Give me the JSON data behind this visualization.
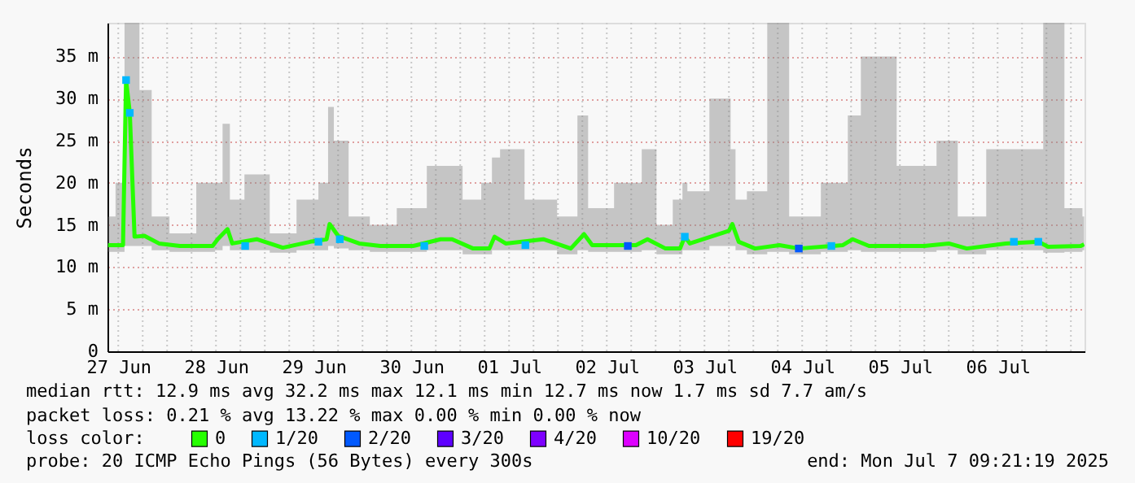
{
  "chart_data": {
    "type": "line",
    "ylabel": "Seconds",
    "legend_title": "loss color:",
    "legend": "bottom left",
    "grid": true,
    "xlim": [
      "2025-06-27T09:21",
      "2025-07-07T09:21"
    ],
    "xticks": [
      {
        "value": "2025-06-27T12:00",
        "label": "27 Jun"
      },
      {
        "value": "2025-06-27T18:00",
        "label": null
      },
      {
        "value": "2025-06-28T00:00",
        "label": null
      },
      {
        "value": "2025-06-28T06:00",
        "label": null
      },
      {
        "value": "2025-06-28T12:00",
        "label": "28 Jun"
      },
      {
        "value": "2025-06-28T18:00",
        "label": null
      },
      {
        "value": "2025-06-29T00:00",
        "label": null
      },
      {
        "value": "2025-06-29T06:00",
        "label": null
      },
      {
        "value": "2025-06-29T12:00",
        "label": "29 Jun"
      },
      {
        "value": "2025-06-29T18:00",
        "label": null
      },
      {
        "value": "2025-06-30T00:00",
        "label": null
      },
      {
        "value": "2025-06-30T06:00",
        "label": null
      },
      {
        "value": "2025-06-30T12:00",
        "label": "30 Jun"
      },
      {
        "value": "2025-06-30T18:00",
        "label": null
      },
      {
        "value": "2025-07-01T00:00",
        "label": null
      },
      {
        "value": "2025-07-01T06:00",
        "label": null
      },
      {
        "value": "2025-07-01T12:00",
        "label": "01 Jul"
      },
      {
        "value": "2025-07-01T18:00",
        "label": null
      },
      {
        "value": "2025-07-02T00:00",
        "label": null
      },
      {
        "value": "2025-07-02T06:00",
        "label": null
      },
      {
        "value": "2025-07-02T12:00",
        "label": "02 Jul"
      },
      {
        "value": "2025-07-02T18:00",
        "label": null
      },
      {
        "value": "2025-07-03T00:00",
        "label": null
      },
      {
        "value": "2025-07-03T06:00",
        "label": null
      },
      {
        "value": "2025-07-03T12:00",
        "label": "03 Jul"
      },
      {
        "value": "2025-07-03T18:00",
        "label": null
      },
      {
        "value": "2025-07-04T00:00",
        "label": null
      },
      {
        "value": "2025-07-04T06:00",
        "label": null
      },
      {
        "value": "2025-07-04T12:00",
        "label": "04 Jul"
      },
      {
        "value": "2025-07-04T18:00",
        "label": null
      },
      {
        "value": "2025-07-05T00:00",
        "label": null
      },
      {
        "value": "2025-07-05T06:00",
        "label": null
      },
      {
        "value": "2025-07-05T12:00",
        "label": "05 Jul"
      },
      {
        "value": "2025-07-05T18:00",
        "label": null
      },
      {
        "value": "2025-07-06T00:00",
        "label": null
      },
      {
        "value": "2025-07-06T06:00",
        "label": null
      },
      {
        "value": "2025-07-06T12:00",
        "label": "06 Jul"
      },
      {
        "value": "2025-07-06T18:00",
        "label": null
      },
      {
        "value": "2025-07-07T00:00",
        "label": null
      },
      {
        "value": "2025-07-07T06:00",
        "label": null
      }
    ],
    "ylim": [
      0,
      39
    ],
    "yticks": [
      0,
      {
        "value": 5,
        "label": "5 m"
      },
      {
        "value": 10,
        "label": "10 m"
      },
      {
        "value": 15,
        "label": "15 m"
      },
      {
        "value": 20,
        "label": "20 m"
      },
      {
        "value": 25,
        "label": "25 m"
      },
      {
        "value": 30,
        "label": "30 m"
      },
      {
        "value": 35,
        "label": "35 m"
      }
    ],
    "series": [
      {
        "name": "0",
        "color": "#26ff00",
        "x": [
          "2025-06-27T09:30",
          "2025-06-27T13:10",
          "2025-06-27T13:55",
          "2025-06-27T14:50",
          "2025-06-27T16:00",
          "2025-06-27T18:25",
          "2025-06-27T22:00",
          "2025-06-28T03:10",
          "2025-06-28T11:10",
          "2025-06-28T12:25",
          "2025-06-28T14:50",
          "2025-06-28T16:00",
          "2025-06-28T22:00",
          "2025-06-29T04:25",
          "2025-06-29T11:10",
          "2025-06-29T15:10",
          "2025-06-29T15:55",
          "2025-06-29T18:00",
          "2025-06-29T23:10",
          "2025-06-30T04:25",
          "2025-06-30T12:25",
          "2025-06-30T19:10",
          "2025-06-30T22:00",
          "2025-07-01T03:10",
          "2025-07-01T07:10",
          "2025-07-01T08:25",
          "2025-07-01T11:10",
          "2025-07-01T20:25",
          "2025-07-02T03:10",
          "2025-07-02T06:25",
          "2025-07-02T08:25",
          "2025-07-02T19:10",
          "2025-07-02T22:00",
          "2025-07-03T02:25",
          "2025-07-03T06:00",
          "2025-07-03T07:10",
          "2025-07-03T08:25",
          "2025-07-03T18:00",
          "2025-07-03T18:50",
          "2025-07-03T20:25",
          "2025-07-04T00:25",
          "2025-07-04T06:25",
          "2025-07-04T11:10",
          "2025-07-04T22:00",
          "2025-07-05T00:25",
          "2025-07-05T04:25",
          "2025-07-05T18:00",
          "2025-07-06T00:00",
          "2025-07-06T04:25",
          "2025-07-06T14:00",
          "2025-07-06T22:00",
          "2025-07-07T00:25",
          "2025-07-07T08:25",
          "2025-07-07T09:15"
        ],
        "values": [
          12.6,
          12.6,
          32.2,
          28.3,
          13.6,
          13.7,
          12.8,
          12.5,
          12.5,
          13.3,
          14.5,
          12.8,
          13.3,
          12.3,
          13.0,
          13.3,
          15.1,
          13.7,
          12.8,
          12.5,
          12.5,
          13.3,
          13.3,
          12.2,
          12.2,
          13.6,
          12.8,
          13.3,
          12.2,
          13.9,
          12.6,
          12.6,
          13.3,
          12.2,
          12.2,
          13.6,
          12.8,
          14.3,
          15.1,
          13.0,
          12.2,
          12.6,
          12.2,
          12.6,
          13.3,
          12.5,
          12.5,
          12.8,
          12.2,
          12.8,
          13.0,
          12.4,
          12.5,
          12.7
        ],
        "lower": [
          11.8,
          11.8,
          12.5,
          12.5,
          12.5,
          12.5,
          12,
          11.8,
          11.8,
          12,
          12.5,
          12,
          12,
          11.7,
          12,
          12,
          12.5,
          12.2,
          12,
          11.8,
          11.8,
          12,
          12,
          11.5,
          11.5,
          12,
          12,
          12,
          11.5,
          12,
          11.8,
          11.8,
          12,
          11.5,
          11.5,
          12,
          12,
          12.5,
          12.5,
          12,
          11.5,
          11.8,
          11.5,
          11.8,
          12,
          11.8,
          11.8,
          12,
          11.5,
          12,
          12,
          11.7,
          11.8,
          12
        ],
        "upper": [
          16,
          20,
          39,
          39,
          39,
          31,
          16,
          14,
          20,
          20,
          27,
          18,
          21,
          14,
          18,
          20,
          29,
          25,
          16,
          15,
          17,
          22,
          22,
          18,
          20,
          23,
          24,
          18,
          16,
          28,
          17,
          20,
          24,
          15,
          18,
          20,
          19,
          30,
          24,
          18,
          19,
          39,
          16,
          20,
          28,
          35,
          22,
          25,
          16,
          24,
          24,
          39,
          17,
          16
        ]
      },
      {
        "name": "1/20",
        "type": "scatter",
        "color": "#00b8ff",
        "x": [
          "2025-06-27T13:55",
          "2025-06-27T14:50",
          "2025-06-28T19:10",
          "2025-06-29T13:10",
          "2025-06-29T18:25",
          "2025-06-30T15:10",
          "2025-07-01T16:00",
          "2025-07-03T07:10",
          "2025-07-04T19:10",
          "2025-07-06T16:00",
          "2025-07-06T22:00"
        ],
        "values": [
          32.2,
          28.3,
          12.5,
          13.0,
          13.3,
          12.5,
          12.6,
          13.6,
          12.5,
          13.0,
          13.0
        ]
      },
      {
        "name": "2/20",
        "type": "scatter",
        "color": "#0059ff",
        "x": [
          "2025-07-02T17:10",
          "2025-07-04T11:10"
        ],
        "values": [
          12.5,
          12.2
        ]
      },
      {
        "name": "3/20",
        "type": "scatter",
        "color": "#5e00ff"
      },
      {
        "name": "4/20",
        "type": "scatter",
        "color": "#7e00ff"
      },
      {
        "name": "10/20",
        "type": "scatter",
        "color": "#dd00ff"
      },
      {
        "name": "19/20",
        "type": "scatter",
        "color": "#ff0000"
      }
    ],
    "annotations": [
      "median rtt:  12.9 ms avg  32.2 ms max  12.1 ms min  12.7 ms now  1.7 ms sd  7.7   am/s",
      "packet loss: 0.21 % avg  13.22 % max  0.00 % min  0.00 % now",
      "probe:       20 ICMP Echo Pings (56 Bytes) every 300s",
      "end: Mon Jul  7 09:21:19 2025"
    ]
  }
}
